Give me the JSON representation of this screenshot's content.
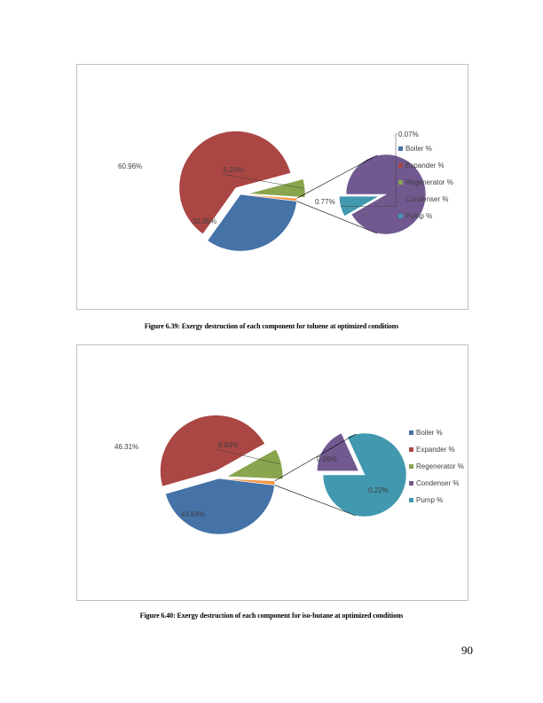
{
  "chart_data": [
    {
      "type": "pie",
      "subtype": "bar-of-pie",
      "categories": [
        "Boiler %",
        "Expander %",
        "Regenerator %",
        "Condenser %",
        "Pump %"
      ],
      "colors": [
        "#4572A7",
        "#AA4643",
        "#89A54E",
        "#71588F",
        "#4198AF"
      ],
      "secondary_connector_color": "#F79646",
      "main_slices": [
        {
          "name": "Boiler %",
          "value": 32.95,
          "label": "32.95%",
          "color": "#4572A7"
        },
        {
          "name": "Expander %",
          "value": 60.96,
          "label": "60.96%",
          "color": "#AA4643",
          "exploded": true
        },
        {
          "name": "Regenerator %",
          "value": 5.24,
          "label": "5.24%",
          "color": "#89A54E",
          "exploded": true
        },
        {
          "name": "Other",
          "value": 0.84,
          "label": "",
          "color": "#F79646"
        }
      ],
      "secondary_slices": [
        {
          "name": "Condenser %",
          "value": 0.77,
          "label": "0.77%",
          "color": "#71588F"
        },
        {
          "name": "Pump %",
          "value": 0.07,
          "label": "0.07%",
          "color": "#4198AF",
          "exploded": true
        }
      ],
      "legend": [
        "Boiler %",
        "Expander %",
        "Regenerator %",
        "Condenser %",
        "Pump %"
      ],
      "legend_position": "right"
    },
    {
      "type": "pie",
      "subtype": "bar-of-pie",
      "categories": [
        "Boiler %",
        "Expander %",
        "Regenerator %",
        "Condenser %",
        "Pump %"
      ],
      "colors": [
        "#4572A7",
        "#AA4643",
        "#89A54E",
        "#71588F",
        "#4198AF"
      ],
      "secondary_connector_color": "#F79646",
      "main_slices": [
        {
          "name": "Boiler %",
          "value": 43.64,
          "label": "43.64%",
          "color": "#4572A7"
        },
        {
          "name": "Expander %",
          "value": 46.31,
          "label": "46.31%",
          "color": "#AA4643",
          "exploded": true
        },
        {
          "name": "Regenerator %",
          "value": 8.83,
          "label": "8.83%",
          "color": "#89A54E",
          "exploded": true
        },
        {
          "name": "Other",
          "value": 1.21,
          "label": "",
          "color": "#F79646"
        }
      ],
      "secondary_slices": [
        {
          "name": "Condenser %",
          "value": 0.22,
          "label": "0.22%",
          "color": "#71588F",
          "exploded": true
        },
        {
          "name": "Pump %",
          "value": 0.99,
          "label": "0.99%",
          "color": "#4198AF"
        }
      ],
      "legend": [
        "Boiler %",
        "Expander %",
        "Regenerator %",
        "Condenser %",
        "Pump %"
      ],
      "legend_position": "right"
    }
  ],
  "captions": {
    "figure1": "Figure 6.39: Exergy destruction of each component for toluene at optimized conditions",
    "figure2": "Figure 6.40: Exergy destruction of each component for iso-butane at optimized conditions"
  },
  "page_number": "90"
}
